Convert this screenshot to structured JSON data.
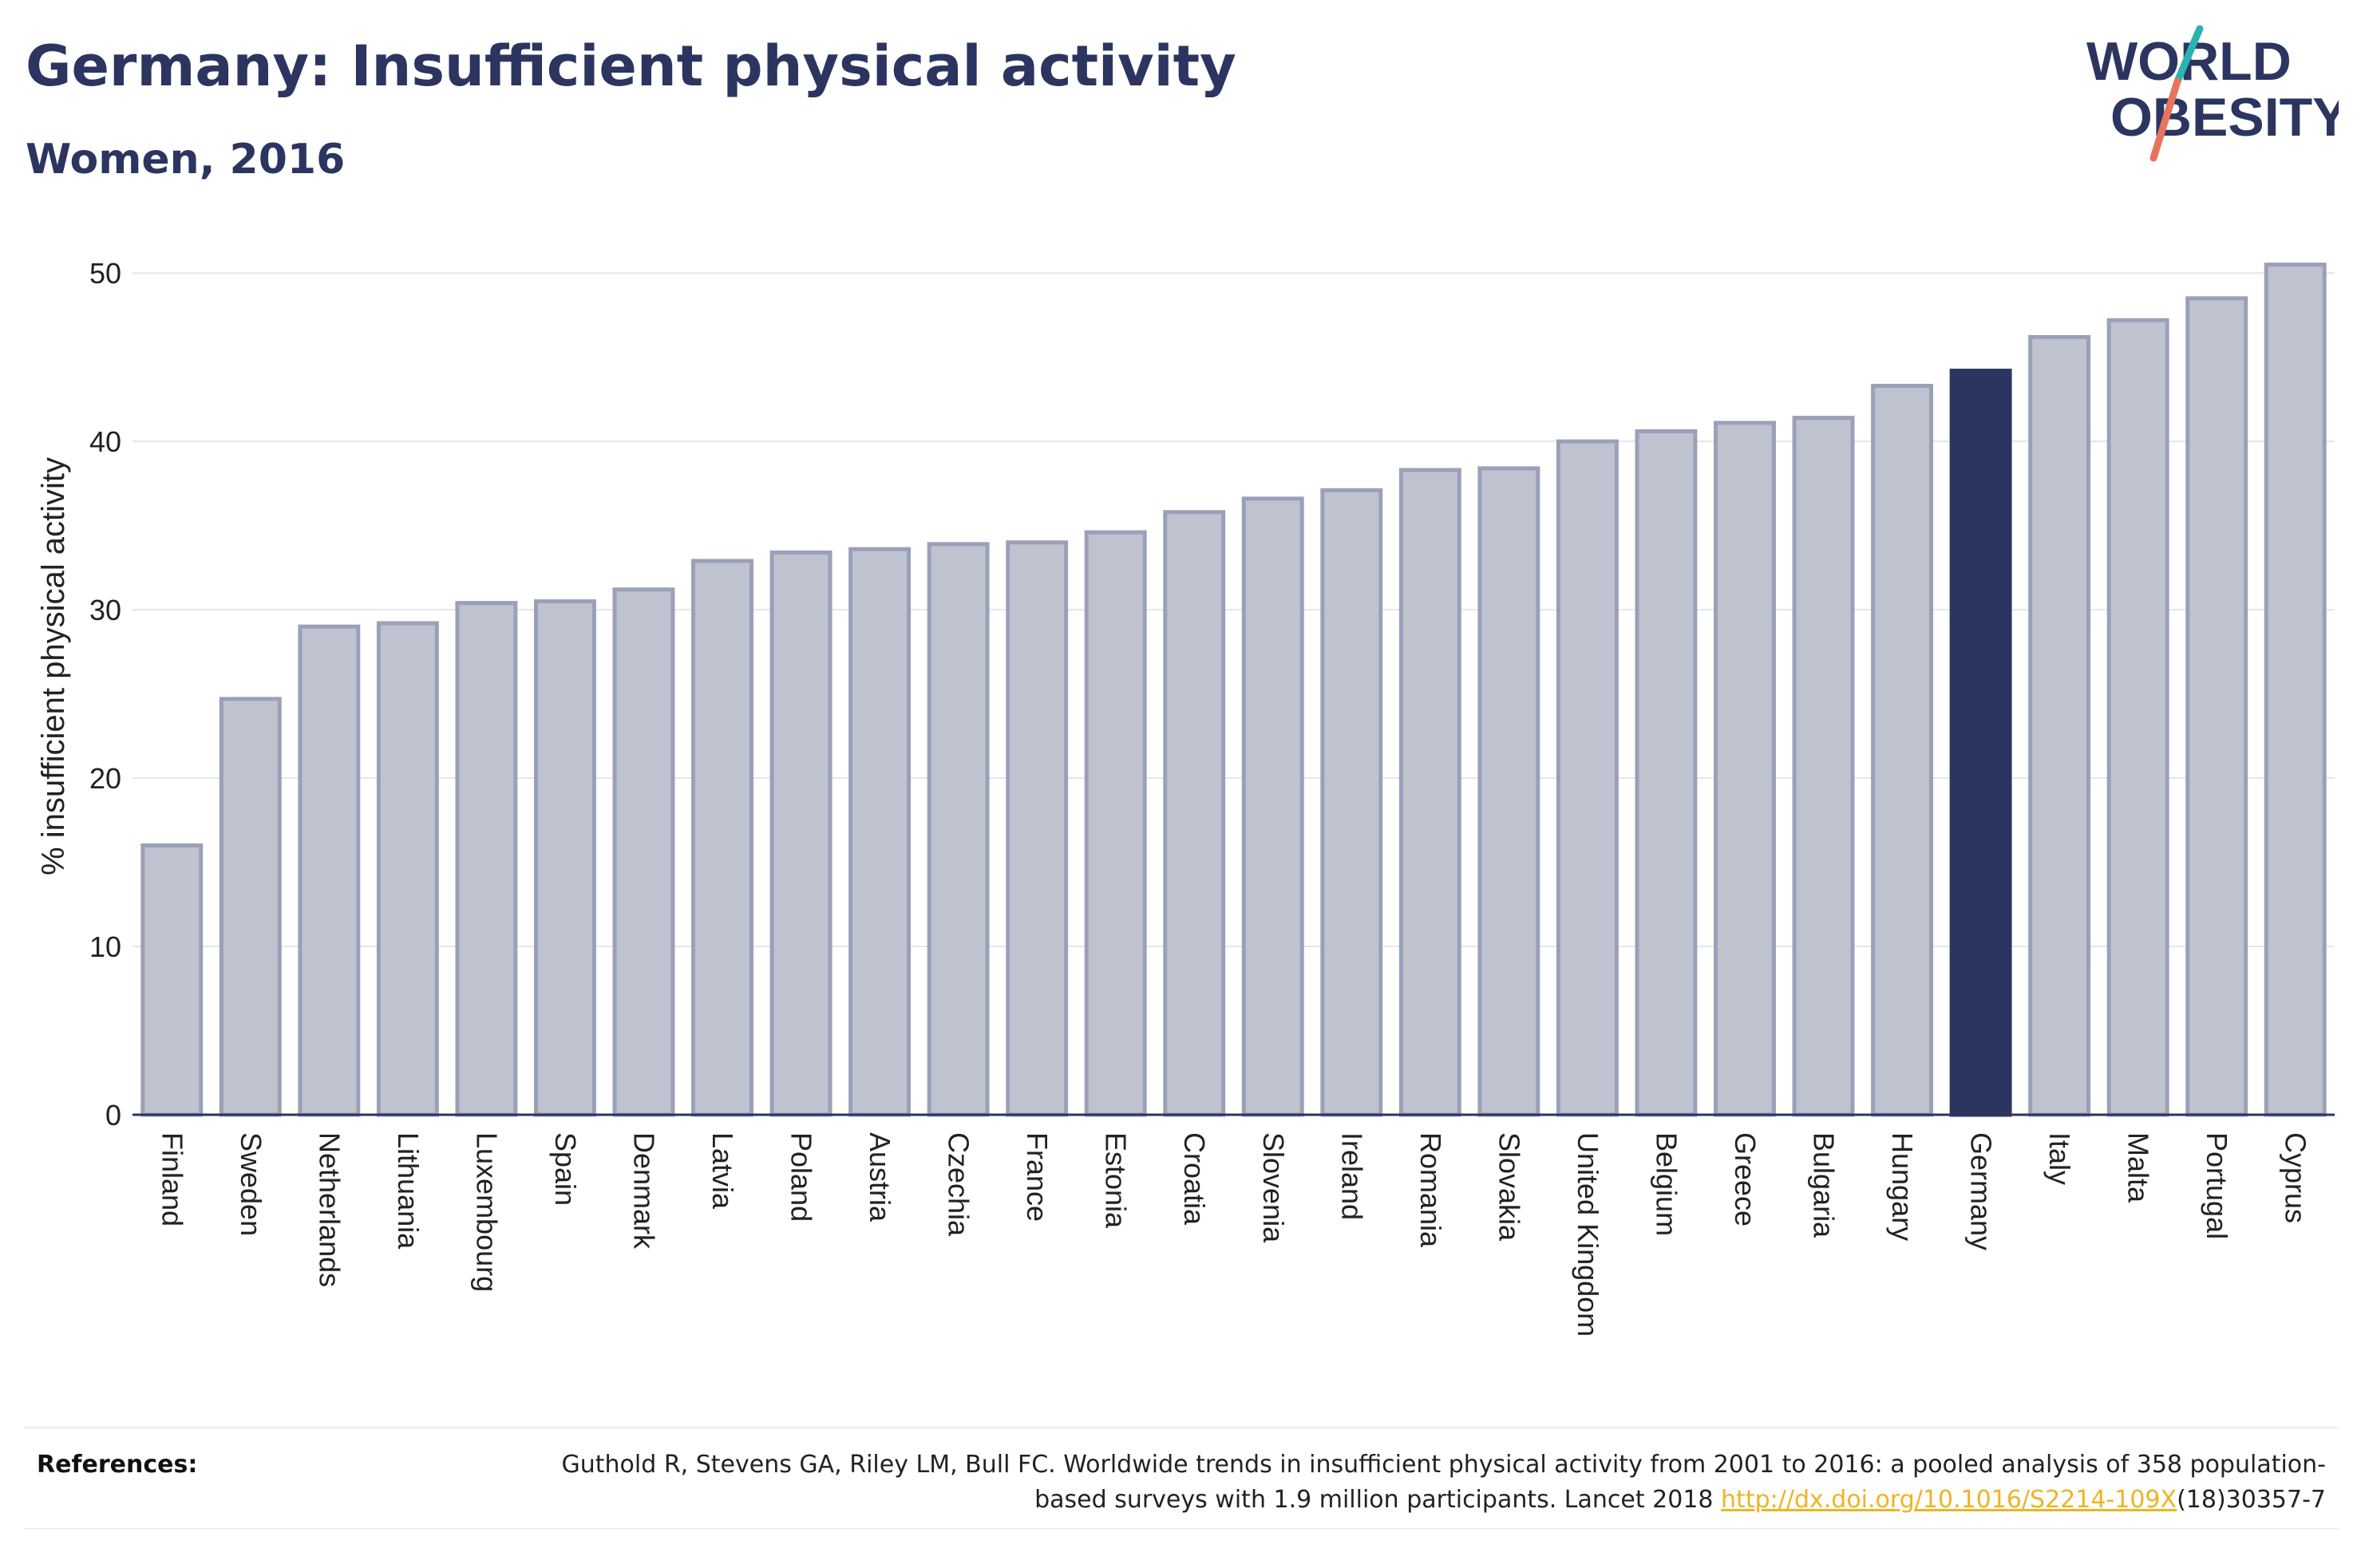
{
  "header": {
    "title": "Germany: Insufficient physical activity",
    "subtitle": "Women, 2016"
  },
  "logo": {
    "line1": "WORLD",
    "line2": "OBESITY"
  },
  "colors": {
    "brand": "#2b3560",
    "bar_default": "#bfc3d0",
    "bar_outline": "#9aa0b8",
    "bar_highlight": "#2b3560",
    "logo_teal": "#2ab3b1",
    "logo_coral": "#e8735f",
    "link": "#f0b323"
  },
  "chart_data": {
    "type": "bar",
    "ylabel": "% insufficient physical activity",
    "ylim": [
      0,
      52
    ],
    "yticks": [
      0,
      10,
      20,
      30,
      40,
      50
    ],
    "grid": true,
    "highlight": "Germany",
    "categories": [
      "Finland",
      "Sweden",
      "Netherlands",
      "Lithuania",
      "Luxembourg",
      "Spain",
      "Denmark",
      "Latvia",
      "Poland",
      "Austria",
      "Czechia",
      "France",
      "Estonia",
      "Croatia",
      "Slovenia",
      "Ireland",
      "Romania",
      "Slovakia",
      "United Kingdom",
      "Belgium",
      "Greece",
      "Bulgaria",
      "Hungary",
      "Germany",
      "Italy",
      "Malta",
      "Portugal",
      "Cyprus"
    ],
    "values": [
      16.0,
      24.7,
      29.0,
      29.2,
      30.4,
      30.5,
      31.2,
      32.9,
      33.4,
      33.6,
      33.9,
      34.0,
      34.6,
      35.8,
      36.6,
      37.1,
      38.3,
      38.4,
      40.0,
      40.6,
      41.1,
      41.4,
      43.3,
      44.2,
      46.2,
      47.2,
      48.5,
      50.5
    ]
  },
  "references": {
    "label": "References:",
    "text_before": "Guthold R, Stevens GA, Riley LM, Bull FC. Worldwide trends in insufficient physical activity from 2001 to 2016: a pooled analysis of 358 population-based surveys with 1.9 million participants. Lancet 2018 ",
    "link": "http://dx.doi.org/10.1016/S2214-109X",
    "text_after": "(18)30357-7"
  }
}
